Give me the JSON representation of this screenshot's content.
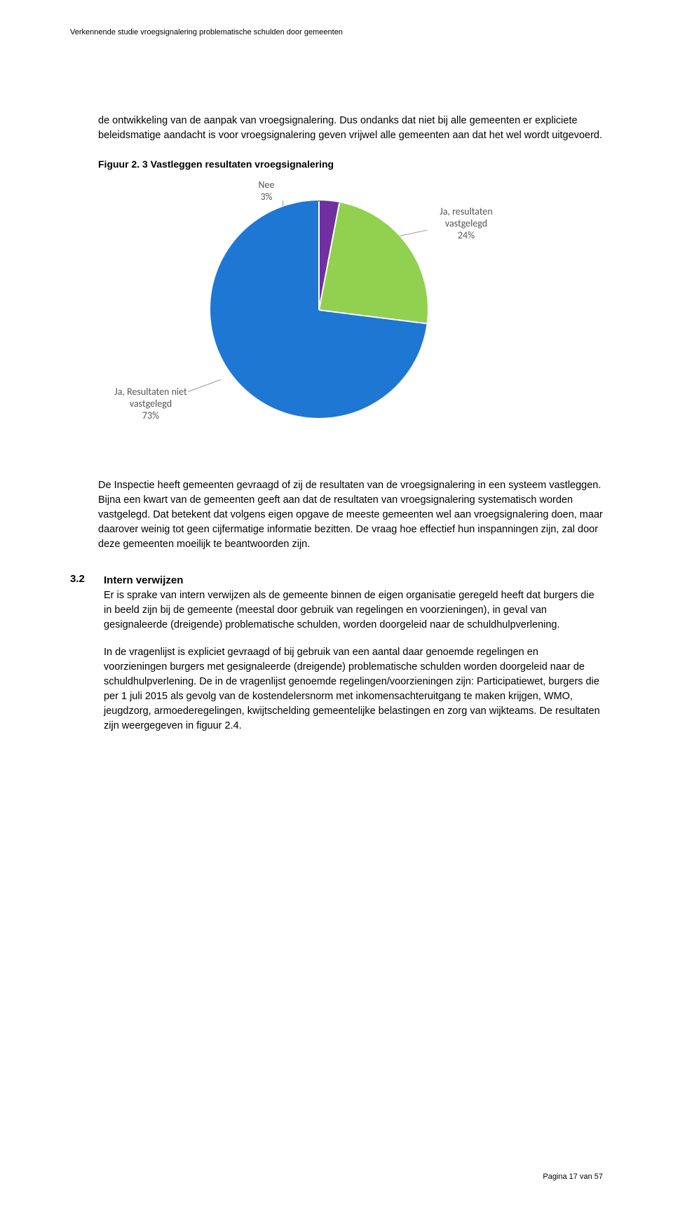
{
  "header": {
    "running_title": "Verkennende studie vroegsignalering problematische schulden door gemeenten"
  },
  "intro_paragraph": "de ontwikkeling van de aanpak van vroegsignalering. Dus ondanks dat niet bij alle gemeenten er expliciete beleidsmatige aandacht is voor vroegsignalering geven vrijwel alle gemeenten aan dat het wel wordt uitgevoerd.",
  "figure": {
    "caption": "Figuur 2. 3 Vastleggen resultaten vroegsignalering",
    "chart": {
      "type": "pie",
      "background_color": "#ffffff",
      "label_font_family": "Calibri",
      "label_fontsize": 14,
      "label_color": "#595959",
      "slices": [
        {
          "label": "Nee",
          "value": 3,
          "pct_text": "3%",
          "color": "#7030a0"
        },
        {
          "label": "Ja, resultaten vastgelegd",
          "value": 24,
          "pct_text": "24%",
          "color": "#92d050"
        },
        {
          "label": "Ja, Resultaten niet vastgelegd",
          "value": 73,
          "pct_text": "73%",
          "color": "#1f77d4"
        }
      ],
      "start_angle_deg": -90,
      "slice_border_color": "#ffffff",
      "slice_border_width": 2
    }
  },
  "figure_followup": "De Inspectie heeft gemeenten gevraagd of zij de resultaten van de vroegsignalering in een systeem vastleggen. Bijna een kwart van de gemeenten geeft aan dat de resultaten van vroegsignalering systematisch worden vastgelegd. Dat betekent dat volgens eigen opgave de meeste gemeenten wel aan vroegsignalering doen, maar daarover weinig tot geen cijfermatige informatie bezitten. De vraag hoe effectief hun inspanningen zijn, zal door deze gemeenten moeilijk te beantwoorden zijn.",
  "section": {
    "number": "3.2",
    "title": "Intern verwijzen",
    "para1": "Er is sprake van intern verwijzen als de gemeente binnen de eigen organisatie geregeld heeft dat burgers die in beeld zijn bij de gemeente (meestal door gebruik van regelingen en voorzieningen), in geval van gesignaleerde (dreigende) problematische schulden, worden doorgeleid naar de schuldhulpverlening.",
    "para2": "In de vragenlijst is expliciet gevraagd of bij gebruik van een aantal daar genoemde regelingen en voorzieningen burgers met gesignaleerde (dreigende) problematische schulden worden doorgeleid naar de schuldhulpverlening. De in de vragenlijst genoemde regelingen/voorzieningen zijn: Participatiewet, burgers die per 1 juli 2015 als gevolg van de kostendelersnorm met inkomensachteruitgang te maken krijgen, WMO, jeugdzorg, armoederegelingen, kwijtschelding gemeentelijke belastingen en zorg van wijkteams. De resultaten zijn weergegeven in figuur 2.4."
  },
  "footer": {
    "page_text": "Pagina 17 van 57"
  }
}
